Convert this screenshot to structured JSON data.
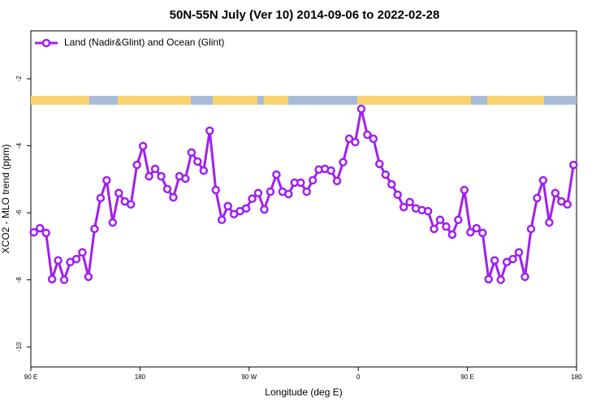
{
  "chart_data": {
    "type": "line",
    "title": "50N-55N July (Ver 10)   2014-09-06 to 2022-02-28",
    "x_label": "Longitude (deg E)",
    "y_label": "XCO2 - MLO trend (ppm)",
    "legend_position": "top-left",
    "xlim": [
      90,
      540
    ],
    "xticks": [
      {
        "value": 90,
        "label": "90 E"
      },
      180,
      {
        "value": 270,
        "label": "90 W"
      },
      {
        "value": 360,
        "label": "0"
      },
      {
        "value": 450,
        "label": "90 E"
      },
      {
        "value": 540,
        "label": "180"
      }
    ],
    "ylim": [
      -10.6,
      -0.57
    ],
    "yticks": [
      -2,
      -4,
      -6,
      -8,
      -10
    ],
    "series": [
      {
        "name": "Land (Nadir&Glint) and Ocean (Glint)",
        "color": "#a020f0",
        "x": [
          92.5,
          97.5,
          102.5,
          107.5,
          112.5,
          117.5,
          122.5,
          127.5,
          132.5,
          137.5,
          142.5,
          147.5,
          152.5,
          157.5,
          162.5,
          167.5,
          172.5,
          177.5,
          182.5,
          187.5,
          192.5,
          197.5,
          202.5,
          207.5,
          212.5,
          217.5,
          222.5,
          227.5,
          232.5,
          237.5,
          242.5,
          247.5,
          252.5,
          257.5,
          262.5,
          267.5,
          272.5,
          277.5,
          282.5,
          287.5,
          292.5,
          297.5,
          302.5,
          307.5,
          312.5,
          317.5,
          322.5,
          327.5,
          332.5,
          337.5,
          342.5,
          347.5,
          352.5,
          357.5,
          362.5,
          367.5,
          372.5,
          377.5,
          382.5,
          387.5,
          392.5,
          397.5,
          402.5,
          407.5,
          412.5,
          417.5,
          422.5,
          427.5,
          432.5,
          437.5,
          442.5,
          447.5,
          452.5,
          457.5,
          462.5,
          467.5,
          472.5,
          477.5,
          482.5,
          487.5,
          492.5,
          497.5,
          502.5,
          507.5,
          512.5,
          517.5,
          522.5,
          527.5,
          532.5,
          537.5
        ],
        "values": [
          -6.58,
          -6.46,
          -6.6,
          -7.98,
          -7.42,
          -8.0,
          -7.47,
          -7.38,
          -7.18,
          -7.91,
          -6.48,
          -5.56,
          -5.03,
          -6.29,
          -5.41,
          -5.66,
          -5.75,
          -4.57,
          -4.01,
          -4.91,
          -4.69,
          -4.91,
          -5.29,
          -5.54,
          -4.91,
          -4.98,
          -4.2,
          -4.47,
          -4.74,
          -3.55,
          -5.32,
          -6.21,
          -5.8,
          -6.04,
          -5.95,
          -5.87,
          -5.58,
          -5.41,
          -5.9,
          -5.37,
          -4.86,
          -5.37,
          -5.44,
          -5.1,
          -5.1,
          -5.37,
          -5.03,
          -4.71,
          -4.69,
          -4.74,
          -5.05,
          -4.49,
          -3.79,
          -3.89,
          -2.9,
          -3.67,
          -3.79,
          -4.54,
          -4.86,
          -5.15,
          -5.46,
          -5.83,
          -5.68,
          -5.87,
          -5.92,
          -5.95,
          -6.48,
          -6.21,
          -6.41,
          -6.65,
          -6.21,
          -5.32,
          -6.58,
          -6.46,
          -6.6,
          -7.98,
          -7.42,
          -8.0,
          -7.47,
          -7.38,
          -7.18,
          -7.91,
          -6.48,
          -5.56,
          -5.03,
          -6.29,
          -5.41,
          -5.66,
          -5.75,
          -4.57
        ]
      }
    ]
  }
}
